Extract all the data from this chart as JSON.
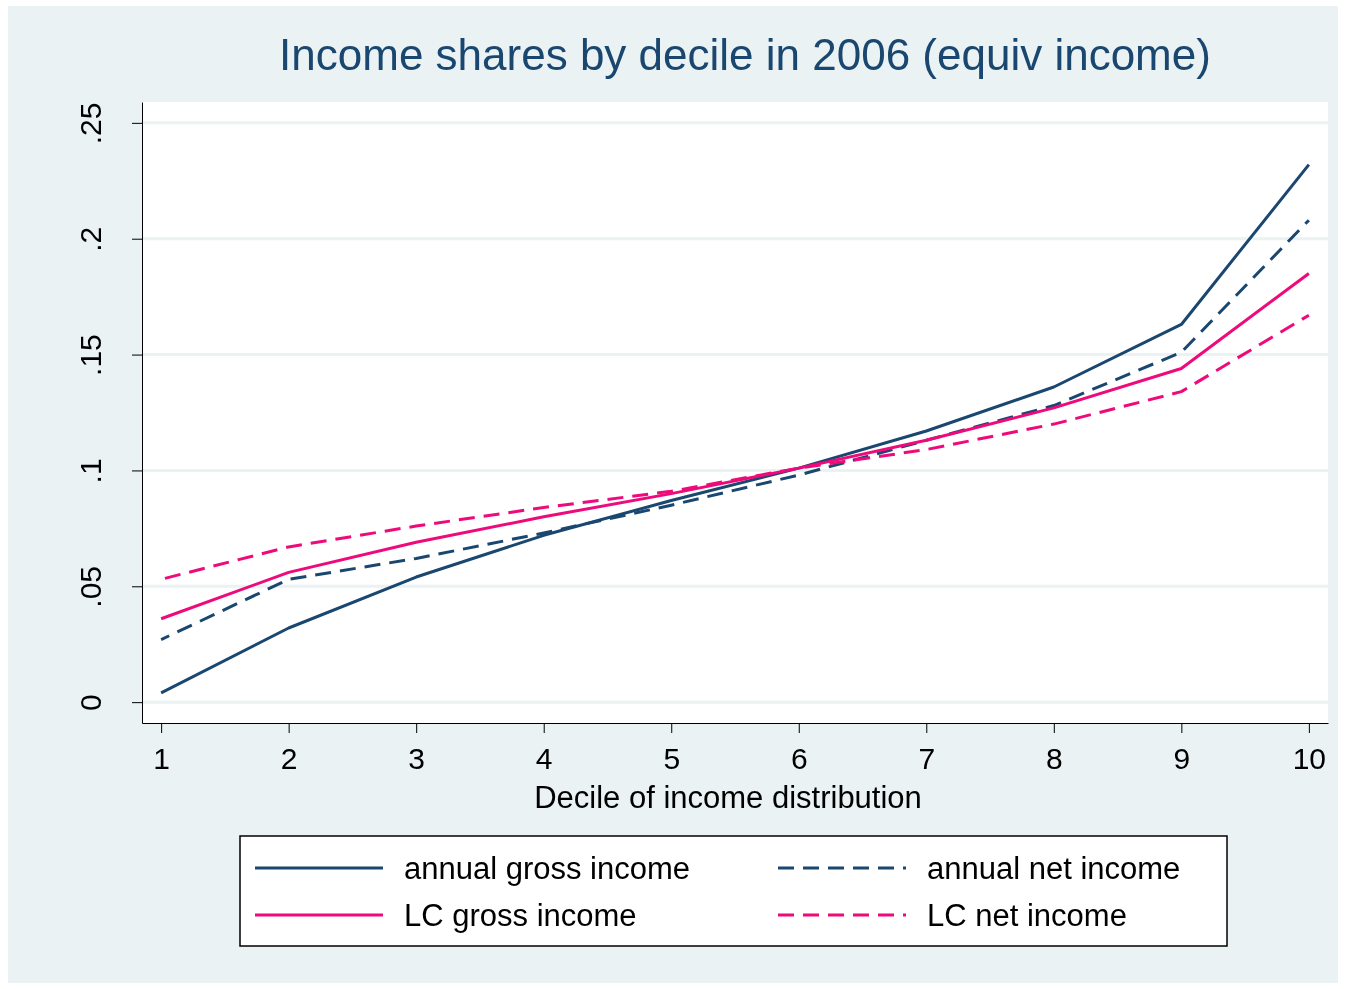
{
  "chart_data": {
    "type": "line",
    "title": "Income shares by decile in 2006 (equiv income)",
    "xlabel": "Decile of income distribution",
    "x": [
      1,
      2,
      3,
      4,
      5,
      6,
      7,
      8,
      9,
      10
    ],
    "xlim": [
      0.85,
      10.15
    ],
    "xticks": [
      1,
      2,
      3,
      4,
      5,
      6,
      7,
      8,
      9,
      10
    ],
    "ylim": [
      -0.009,
      0.259
    ],
    "yticks": [
      0,
      {
        "value": 0.05,
        "label": ".05"
      },
      {
        "value": 0.1,
        "label": ".1"
      },
      {
        "value": 0.15,
        "label": ".15"
      },
      {
        "value": 0.2,
        "label": ".2"
      },
      {
        "value": 0.25,
        "label": ".25"
      }
    ],
    "grid": "y",
    "legend": "bottom",
    "marker": "none",
    "series": [
      {
        "name": "annual gross income",
        "color": "#1a476f",
        "line_style": "solid",
        "values": [
          0.004,
          0.032,
          0.054,
          0.072,
          0.087,
          0.101,
          0.117,
          0.136,
          0.163,
          0.232
        ]
      },
      {
        "name": "annual net income",
        "color": "#1a476f",
        "line_style": "dashed",
        "values": [
          0.027,
          0.053,
          0.062,
          0.073,
          0.085,
          0.098,
          0.113,
          0.128,
          0.151,
          0.208
        ]
      },
      {
        "name": "LC gross income",
        "color": "#ee0a7a",
        "line_style": "solid",
        "values": [
          0.036,
          0.056,
          0.069,
          0.08,
          0.09,
          0.101,
          0.113,
          0.127,
          0.144,
          0.185
        ]
      },
      {
        "name": "LC net income",
        "color": "#ee0a7a",
        "line_style": "dashed",
        "values": [
          0.053,
          0.067,
          0.076,
          0.084,
          0.091,
          0.101,
          0.109,
          0.12,
          0.134,
          0.167
        ]
      }
    ]
  }
}
